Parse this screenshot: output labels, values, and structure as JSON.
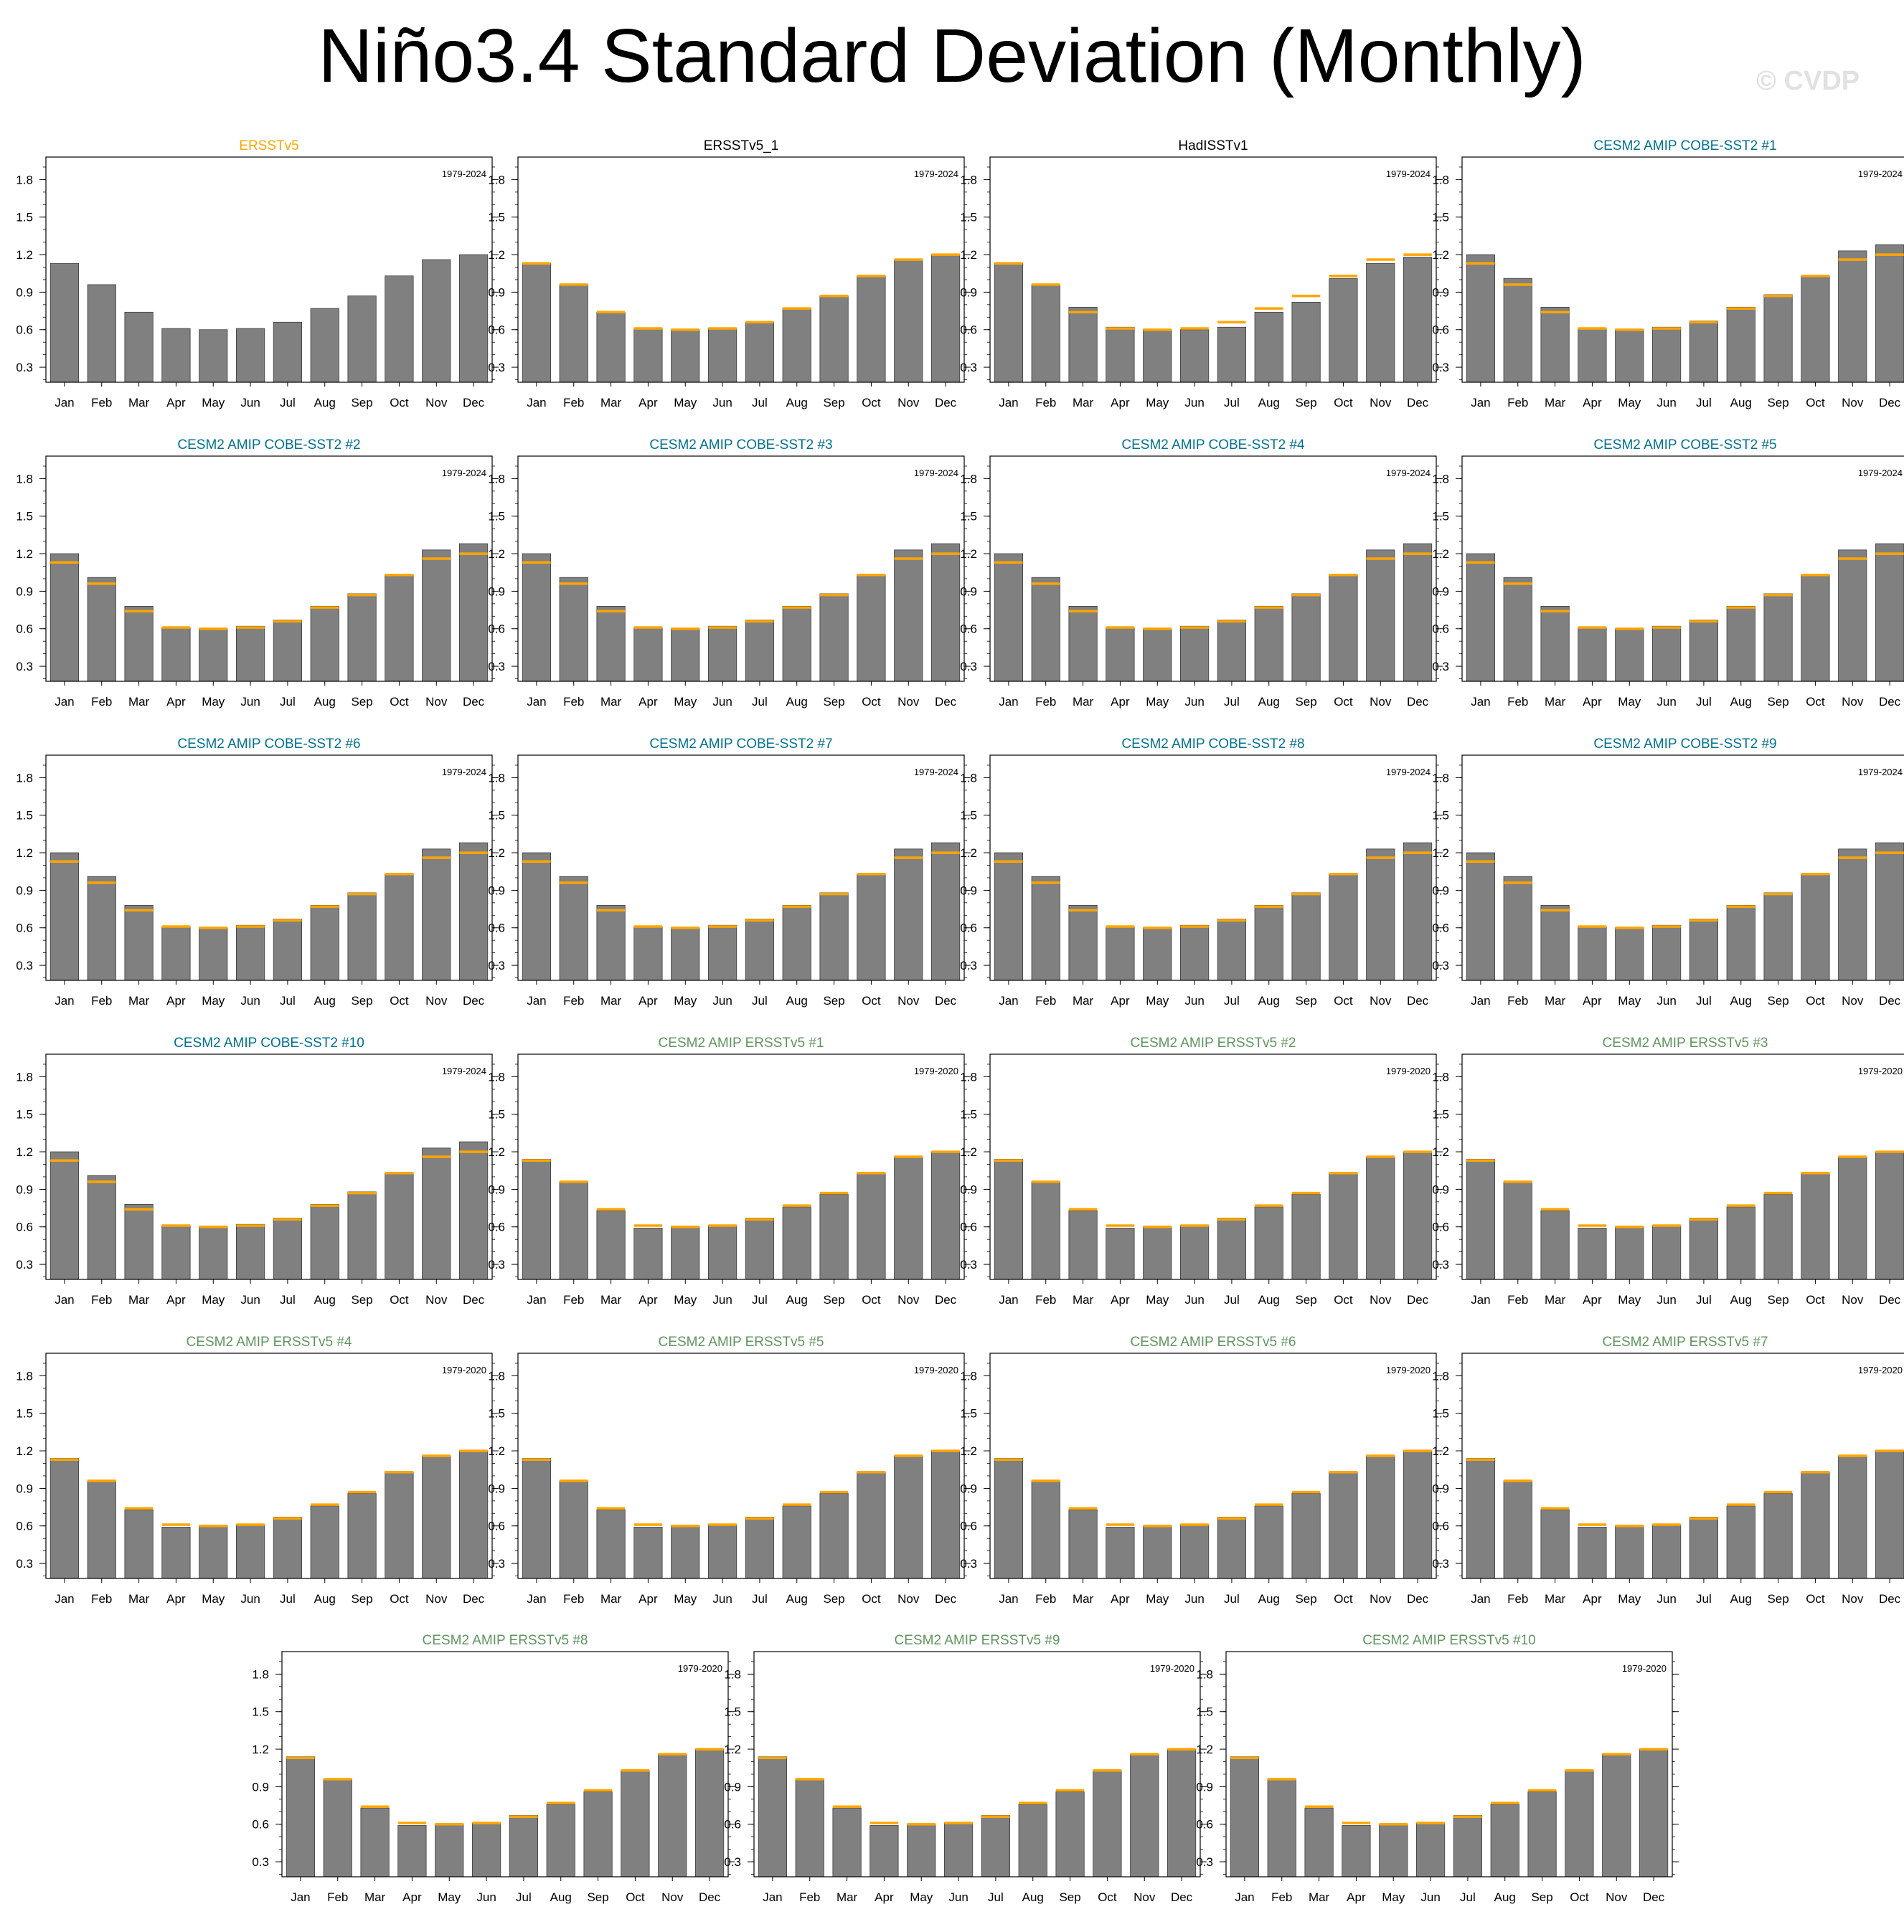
{
  "title": "Niño3.4 Standard Deviation (Monthly)",
  "watermark": "© CVDP",
  "colors": {
    "bar": "#808080",
    "bar_edge": "#3c3c3c",
    "reference": "#ffa500",
    "title_obs": "#ffa500",
    "title_plain": "#000000",
    "title_cobe": "#00708f",
    "title_ersst": "#5f955f"
  },
  "chart_data": {
    "type": "bar",
    "categories": [
      "Jan",
      "Feb",
      "Mar",
      "Apr",
      "May",
      "Jun",
      "Jul",
      "Aug",
      "Sep",
      "Oct",
      "Nov",
      "Dec"
    ],
    "ylim": [
      0.18,
      1.98
    ],
    "yticks": [
      0.3,
      0.6,
      0.9,
      1.2,
      1.5,
      1.8
    ],
    "ytick_labels": [
      "0.3",
      "0.6",
      "0.9",
      "1.2",
      "1.5",
      "1.8"
    ],
    "reference_name": "ERSSTv5",
    "reference_values": [
      1.13,
      0.96,
      0.74,
      0.61,
      0.6,
      0.61,
      0.66,
      0.77,
      0.87,
      1.03,
      1.16,
      1.2
    ],
    "panels": [
      {
        "title": "ERSSTv5",
        "title_color": "#ffa500",
        "period": "1979-2024",
        "show_reference": false,
        "values": [
          1.13,
          0.96,
          0.74,
          0.61,
          0.6,
          0.61,
          0.66,
          0.77,
          0.87,
          1.03,
          1.16,
          1.2
        ]
      },
      {
        "title": "ERSSTv5_1",
        "title_color": "#000000",
        "period": "1979-2024",
        "show_reference": true,
        "values": [
          1.13,
          0.96,
          0.74,
          0.61,
          0.6,
          0.61,
          0.66,
          0.77,
          0.87,
          1.03,
          1.16,
          1.2
        ]
      },
      {
        "title": "HadISSTv1",
        "title_color": "#000000",
        "period": "1979-2024",
        "show_reference": true,
        "values": [
          1.13,
          0.96,
          0.78,
          0.62,
          0.6,
          0.6,
          0.62,
          0.74,
          0.82,
          1.01,
          1.13,
          1.18
        ]
      },
      {
        "title": "CESM2 AMIP COBE-SST2 #1",
        "title_color": "#00708f",
        "period": "1979-2024",
        "show_reference": true,
        "values": [
          1.2,
          1.01,
          0.78,
          0.61,
          0.6,
          0.62,
          0.67,
          0.78,
          0.88,
          1.03,
          1.23,
          1.28
        ]
      },
      {
        "title": "CESM2 AMIP COBE-SST2 #2",
        "title_color": "#00708f",
        "period": "1979-2024",
        "show_reference": true,
        "values": [
          1.2,
          1.01,
          0.78,
          0.61,
          0.6,
          0.62,
          0.67,
          0.78,
          0.88,
          1.03,
          1.23,
          1.28
        ]
      },
      {
        "title": "CESM2 AMIP COBE-SST2 #3",
        "title_color": "#00708f",
        "period": "1979-2024",
        "show_reference": true,
        "values": [
          1.2,
          1.01,
          0.78,
          0.61,
          0.6,
          0.62,
          0.67,
          0.78,
          0.88,
          1.03,
          1.23,
          1.28
        ]
      },
      {
        "title": "CESM2 AMIP COBE-SST2 #4",
        "title_color": "#00708f",
        "period": "1979-2024",
        "show_reference": true,
        "values": [
          1.2,
          1.01,
          0.78,
          0.61,
          0.6,
          0.62,
          0.67,
          0.78,
          0.88,
          1.03,
          1.23,
          1.28
        ]
      },
      {
        "title": "CESM2 AMIP COBE-SST2 #5",
        "title_color": "#00708f",
        "period": "1979-2024",
        "show_reference": true,
        "values": [
          1.2,
          1.01,
          0.78,
          0.61,
          0.6,
          0.62,
          0.67,
          0.78,
          0.88,
          1.03,
          1.23,
          1.28
        ]
      },
      {
        "title": "CESM2 AMIP COBE-SST2 #6",
        "title_color": "#00708f",
        "period": "1979-2024",
        "show_reference": true,
        "values": [
          1.2,
          1.01,
          0.78,
          0.61,
          0.6,
          0.62,
          0.67,
          0.78,
          0.88,
          1.03,
          1.23,
          1.28
        ]
      },
      {
        "title": "CESM2 AMIP COBE-SST2 #7",
        "title_color": "#00708f",
        "period": "1979-2024",
        "show_reference": true,
        "values": [
          1.2,
          1.01,
          0.78,
          0.61,
          0.6,
          0.62,
          0.67,
          0.78,
          0.88,
          1.03,
          1.23,
          1.28
        ]
      },
      {
        "title": "CESM2 AMIP COBE-SST2 #8",
        "title_color": "#00708f",
        "period": "1979-2024",
        "show_reference": true,
        "values": [
          1.2,
          1.01,
          0.78,
          0.61,
          0.6,
          0.62,
          0.67,
          0.78,
          0.88,
          1.03,
          1.23,
          1.28
        ]
      },
      {
        "title": "CESM2 AMIP COBE-SST2 #9",
        "title_color": "#00708f",
        "period": "1979-2024",
        "show_reference": true,
        "values": [
          1.2,
          1.01,
          0.78,
          0.61,
          0.6,
          0.62,
          0.67,
          0.78,
          0.88,
          1.03,
          1.23,
          1.28
        ]
      },
      {
        "title": "CESM2 AMIP COBE-SST2 #10",
        "title_color": "#00708f",
        "period": "1979-2024",
        "show_reference": true,
        "values": [
          1.2,
          1.01,
          0.78,
          0.61,
          0.6,
          0.62,
          0.67,
          0.78,
          0.88,
          1.03,
          1.23,
          1.28
        ]
      },
      {
        "title": "CESM2 AMIP ERSSTv5 #1",
        "title_color": "#5f955f",
        "period": "1979-2020",
        "show_reference": true,
        "values": [
          1.14,
          0.96,
          0.73,
          0.59,
          0.6,
          0.61,
          0.67,
          0.76,
          0.86,
          1.03,
          1.16,
          1.2
        ]
      },
      {
        "title": "CESM2 AMIP ERSSTv5 #2",
        "title_color": "#5f955f",
        "period": "1979-2020",
        "show_reference": true,
        "values": [
          1.14,
          0.96,
          0.73,
          0.59,
          0.6,
          0.61,
          0.67,
          0.76,
          0.86,
          1.03,
          1.16,
          1.2
        ]
      },
      {
        "title": "CESM2 AMIP ERSSTv5 #3",
        "title_color": "#5f955f",
        "period": "1979-2020",
        "show_reference": true,
        "values": [
          1.14,
          0.96,
          0.73,
          0.59,
          0.6,
          0.61,
          0.67,
          0.76,
          0.86,
          1.03,
          1.16,
          1.2
        ]
      },
      {
        "title": "CESM2 AMIP ERSSTv5 #4",
        "title_color": "#5f955f",
        "period": "1979-2020",
        "show_reference": true,
        "values": [
          1.14,
          0.96,
          0.73,
          0.59,
          0.6,
          0.61,
          0.67,
          0.76,
          0.86,
          1.03,
          1.16,
          1.2
        ]
      },
      {
        "title": "CESM2 AMIP ERSSTv5 #5",
        "title_color": "#5f955f",
        "period": "1979-2020",
        "show_reference": true,
        "values": [
          1.14,
          0.96,
          0.73,
          0.59,
          0.6,
          0.61,
          0.67,
          0.76,
          0.86,
          1.03,
          1.16,
          1.2
        ]
      },
      {
        "title": "CESM2 AMIP ERSSTv5 #6",
        "title_color": "#5f955f",
        "period": "1979-2020",
        "show_reference": true,
        "values": [
          1.14,
          0.96,
          0.73,
          0.59,
          0.6,
          0.61,
          0.67,
          0.76,
          0.86,
          1.03,
          1.16,
          1.2
        ]
      },
      {
        "title": "CESM2 AMIP ERSSTv5 #7",
        "title_color": "#5f955f",
        "period": "1979-2020",
        "show_reference": true,
        "values": [
          1.14,
          0.96,
          0.73,
          0.59,
          0.6,
          0.61,
          0.67,
          0.76,
          0.86,
          1.03,
          1.16,
          1.2
        ]
      },
      {
        "title": "CESM2 AMIP ERSSTv5 #8",
        "title_color": "#5f955f",
        "period": "1979-2020",
        "show_reference": true,
        "values": [
          1.14,
          0.96,
          0.73,
          0.59,
          0.6,
          0.61,
          0.67,
          0.76,
          0.86,
          1.03,
          1.16,
          1.2
        ]
      },
      {
        "title": "CESM2 AMIP ERSSTv5 #9",
        "title_color": "#5f955f",
        "period": "1979-2020",
        "show_reference": true,
        "values": [
          1.14,
          0.96,
          0.73,
          0.59,
          0.6,
          0.61,
          0.67,
          0.76,
          0.86,
          1.03,
          1.16,
          1.2
        ]
      },
      {
        "title": "CESM2 AMIP ERSSTv5 #10",
        "title_color": "#5f955f",
        "period": "1979-2020",
        "show_reference": true,
        "values": [
          1.14,
          0.96,
          0.73,
          0.59,
          0.6,
          0.61,
          0.67,
          0.76,
          0.86,
          1.03,
          1.16,
          1.2
        ]
      }
    ]
  }
}
